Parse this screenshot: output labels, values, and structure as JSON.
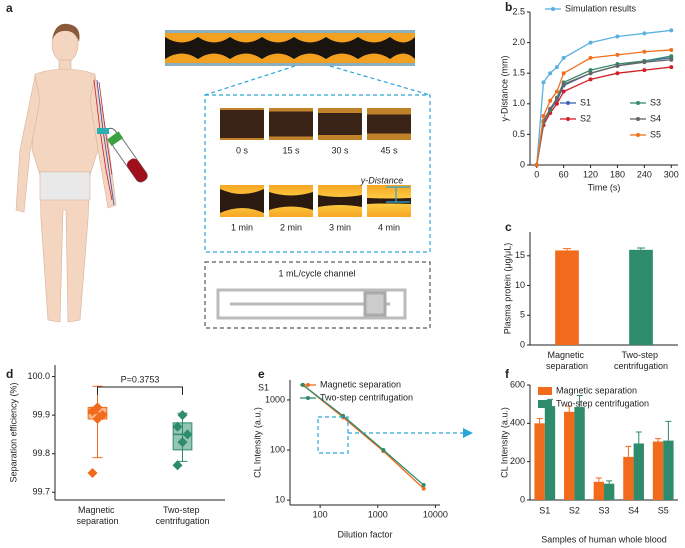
{
  "panel_a": {
    "label": "a",
    "times": [
      "0 s",
      "15 s",
      "30 s",
      "45 s",
      "1 min",
      "2 min",
      "3 min",
      "4 min"
    ],
    "y_distance": "y-Distance",
    "channel": "1 mL/cycle channel"
  },
  "chart_data": [
    {
      "type": "line",
      "panel": "b",
      "xlabel": "Time (s)",
      "ylabel": "y-Distance (mm)",
      "x": [
        0,
        15,
        30,
        45,
        60,
        120,
        180,
        240,
        300
      ],
      "series": [
        {
          "name": "Simulation results",
          "color": "#5ab0e0",
          "values": [
            0,
            1.35,
            1.5,
            1.6,
            1.75,
            2.0,
            2.1,
            2.15,
            2.2
          ]
        },
        {
          "name": "S1",
          "color": "#3a66b0",
          "values": [
            0,
            0.7,
            0.9,
            1.05,
            1.3,
            1.5,
            1.62,
            1.7,
            1.75
          ]
        },
        {
          "name": "S2",
          "color": "#d0202a",
          "values": [
            0,
            0.65,
            0.85,
            1.0,
            1.2,
            1.4,
            1.5,
            1.55,
            1.6
          ]
        },
        {
          "name": "S3",
          "color": "#3a8a6a",
          "values": [
            0,
            0.7,
            0.9,
            1.1,
            1.35,
            1.55,
            1.65,
            1.7,
            1.78
          ]
        },
        {
          "name": "S4",
          "color": "#666666",
          "values": [
            0,
            0.72,
            0.92,
            1.08,
            1.32,
            1.5,
            1.62,
            1.68,
            1.72
          ]
        },
        {
          "name": "S5",
          "color": "#f07020",
          "values": [
            0,
            0.8,
            1.05,
            1.2,
            1.5,
            1.75,
            1.8,
            1.85,
            1.88
          ]
        }
      ],
      "xlim": [
        -15,
        315
      ],
      "xticks": [
        0,
        60,
        120,
        180,
        240,
        300
      ],
      "ylim": [
        0,
        2.5
      ],
      "yticks": [
        0,
        0.5,
        {
          "value": 1,
          "label": "1.0"
        },
        1.5,
        {
          "value": 2,
          "label": "2.0"
        },
        2.5
      ]
    },
    {
      "type": "bar",
      "panel": "c",
      "ylabel": "Plasma protein (μg/μL)",
      "categories": [
        "Magnetic separation",
        "Two-step centrifugation"
      ],
      "values": [
        15.9,
        16.0
      ],
      "errors": [
        0.3,
        0.3
      ],
      "colors": [
        "#f26b1d",
        "#2e8b6b"
      ],
      "ylim": [
        0,
        19
      ],
      "yticks": [
        0,
        5,
        10,
        15
      ]
    },
    {
      "type": "box",
      "panel": "d",
      "ylabel": "Separation efficiency (%)",
      "annotation": "P=0.3753",
      "categories": [
        "Magnetic separation",
        "Two-step centrifugation"
      ],
      "colors": [
        "#f26b1d",
        "#2e8b6b"
      ],
      "boxes": [
        {
          "whisker_low": 99.79,
          "q1": 99.89,
          "median": 99.905,
          "q3": 99.92,
          "whisker_high": 99.975,
          "points": [
            99.75,
            99.89,
            99.9,
            99.91,
            99.92
          ]
        },
        {
          "whisker_low": 99.78,
          "q1": 99.81,
          "median": 99.85,
          "q3": 99.88,
          "whisker_high": 99.905,
          "points": [
            99.77,
            99.83,
            99.85,
            99.87,
            99.9
          ]
        }
      ],
      "ylim": [
        99.68,
        100.03
      ],
      "yticks": [
        99.7,
        99.8,
        99.9,
        {
          "value": 100,
          "label": "100.0"
        }
      ]
    },
    {
      "type": "line",
      "panel": "e",
      "annotation": "S1",
      "xlabel": "Dilution factor",
      "ylabel": "CL Intensity (a.u.)",
      "log_x": true,
      "log_y": true,
      "x": [
        50,
        250,
        1250,
        6250
      ],
      "series": [
        {
          "name": "Magnetic separation",
          "color": "#f26b1d",
          "values": [
            2000,
            450,
            95,
            17
          ]
        },
        {
          "name": "Two-step centrifugation",
          "color": "#2e8b6b",
          "values": [
            2000,
            480,
            100,
            20
          ]
        }
      ],
      "xlim": [
        30,
        12000
      ],
      "xticks": [
        100,
        1000,
        10000
      ],
      "ylim": [
        8,
        2500
      ],
      "yticks": [
        10,
        100,
        1000
      ]
    },
    {
      "type": "grouped_bar",
      "panel": "f",
      "xlabel": "Samples of human whole blood",
      "ylabel": "CL Intensity (a.u.)",
      "categories": [
        "S1",
        "S2",
        "S3",
        "S4",
        "S5"
      ],
      "series": [
        {
          "name": "Magnetic separation",
          "color": "#f26b1d",
          "values": [
            400,
            460,
            95,
            225,
            305
          ],
          "errors": [
            25,
            30,
            20,
            55,
            15
          ]
        },
        {
          "name": "Two-step centrifugation",
          "color": "#2e8b6b",
          "values": [
            490,
            485,
            85,
            295,
            310
          ],
          "errors": [
            35,
            60,
            15,
            60,
            100
          ]
        }
      ],
      "ylim": [
        0,
        600
      ],
      "yticks": [
        0,
        200,
        400,
        600
      ]
    }
  ]
}
